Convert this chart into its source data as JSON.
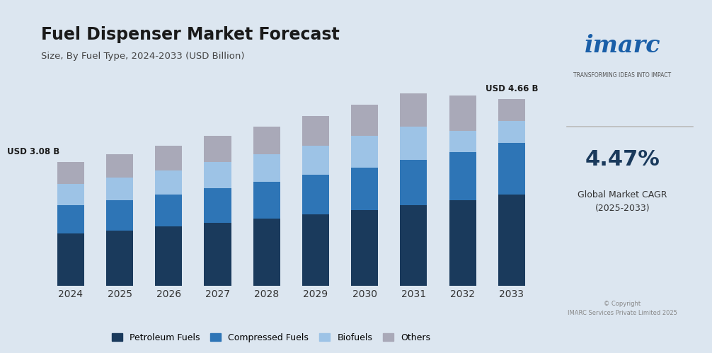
{
  "title": "Fuel Dispenser Market Forecast",
  "subtitle": "Size, By Fuel Type, 2024-2033 (USD Billion)",
  "years": [
    2024,
    2025,
    2026,
    2027,
    2028,
    2029,
    2030,
    2031,
    2032,
    2033
  ],
  "petroleum": [
    1.3,
    1.38,
    1.47,
    1.57,
    1.67,
    1.78,
    1.89,
    2.01,
    2.14,
    2.28
  ],
  "compressed": [
    0.7,
    0.75,
    0.8,
    0.86,
    0.92,
    0.98,
    1.05,
    1.12,
    1.2,
    1.28
  ],
  "biofuels": [
    0.54,
    0.57,
    0.61,
    0.65,
    0.69,
    0.74,
    0.79,
    0.84,
    0.52,
    0.55
  ],
  "others": [
    0.54,
    0.58,
    0.61,
    0.65,
    0.69,
    0.74,
    0.78,
    0.83,
    0.88,
    0.55
  ],
  "colors": {
    "Petroleum Fuels": "#1a3a5c",
    "Compressed Fuels": "#2e75b6",
    "Biofuels": "#9dc3e6",
    "Others": "#a9a9b8"
  },
  "bg_color": "#dce6f0",
  "bar_width": 0.55,
  "ylim": [
    0,
    5.5
  ],
  "annotation_2024": "USD 3.08 B",
  "annotation_2033": "USD 4.66 B",
  "cagr_text": "4.47%",
  "cagr_label": "Global Market CAGR\n(2025-2033)",
  "imarc_text": "imarc",
  "imarc_sub": "TRANSFORMING IDEAS INTO IMPACT",
  "copyright": "© Copyright\nIMARC Services Private Limited 2025"
}
